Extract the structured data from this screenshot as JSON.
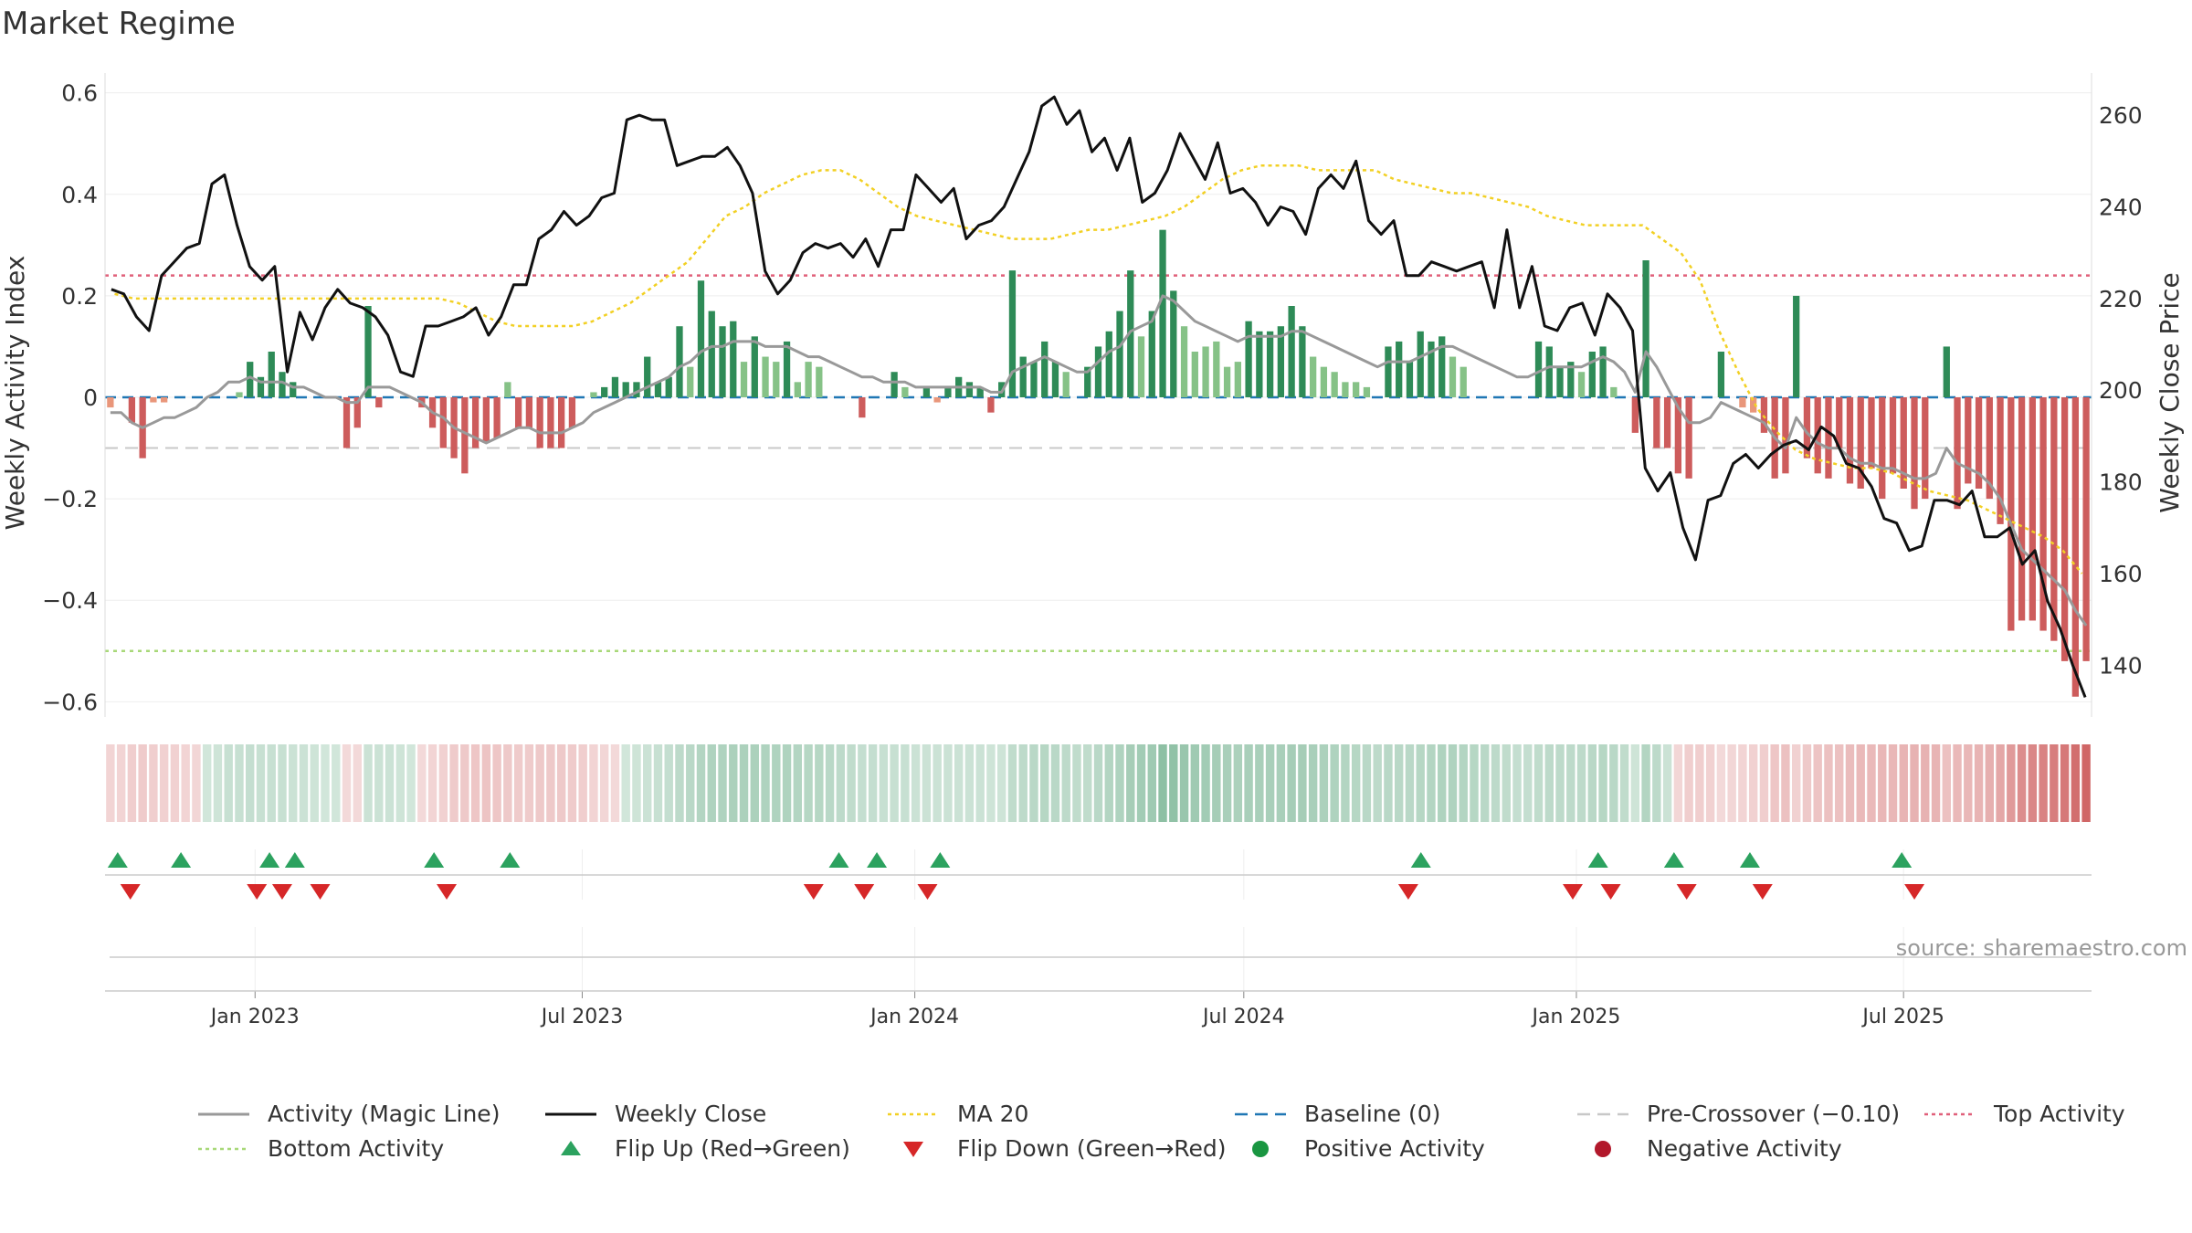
{
  "title": "Market Regime",
  "source": "source: sharemaestro.com",
  "axes": {
    "left_label": "Weekly Activity Index",
    "right_label": "Weekly Close Price",
    "left_ticks": [
      "0.6",
      "0.4",
      "0.2",
      "0",
      "−0.2",
      "−0.4",
      "−0.6"
    ],
    "right_ticks": [
      "260",
      "240",
      "220",
      "200",
      "180",
      "160",
      "140"
    ],
    "x_ticks": [
      "Jan 2023",
      "Jul 2023",
      "Jan 2024",
      "Jul 2024",
      "Jan 2025",
      "Jul 2025"
    ]
  },
  "legend": [
    {
      "label": "Activity (Magic Line)",
      "kind": "line",
      "color": "#999999"
    },
    {
      "label": "Weekly Close",
      "kind": "line",
      "color": "#111111"
    },
    {
      "label": "MA 20",
      "kind": "dotted",
      "color": "#f2d024"
    },
    {
      "label": "Baseline (0)",
      "kind": "dashed",
      "color": "#1f77b4"
    },
    {
      "label": "Pre-Crossover (−0.10)",
      "kind": "dashed",
      "color": "#c8c8c8"
    },
    {
      "label": "Top Activity",
      "kind": "dotted",
      "color": "#e0607a"
    },
    {
      "label": "Bottom Activity",
      "kind": "dotted",
      "color": "#a8d878"
    },
    {
      "label": "Flip Up (Red→Green)",
      "kind": "tri-up",
      "color": "#2ca25f"
    },
    {
      "label": "Flip Down (Green→Red)",
      "kind": "tri-down",
      "color": "#d62728"
    },
    {
      "label": "Positive Activity",
      "kind": "dot",
      "color": "#1a9641"
    },
    {
      "label": "Negative Activity",
      "kind": "dot",
      "color": "#b2182b"
    }
  ],
  "colors": {
    "pos_dark": "#2e8b57",
    "pos_light": "#86c287",
    "neg_dark": "#cd5c5c",
    "neg_light": "#e9967a",
    "close": "#111111",
    "magic": "#999999",
    "ma": "#f2d024",
    "top": "#e0607a",
    "bottom": "#a8d878",
    "pre": "#c8c8c8",
    "baseline": "#1f77b4",
    "flip_up": "#2ca25f",
    "flip_down": "#d62728"
  },
  "chart_data": {
    "type": "bar",
    "x_range": [
      "2022-10-10",
      "2025-10-13"
    ],
    "ylim": [
      -0.63,
      0.63
    ],
    "y2lim": [
      128.7,
      268.2
    ],
    "thresholds": {
      "top": 0.24,
      "bottom": -0.5,
      "pre_crossover": -0.1,
      "baseline": 0
    },
    "series": [
      {
        "name": "Weekly Activity Index (bars)",
        "values": [
          -0.02,
          0.0,
          -0.05,
          -0.12,
          -0.01,
          -0.01,
          0.0,
          0.0,
          0.0,
          0.0,
          0.0,
          0.0,
          0.01,
          0.07,
          0.04,
          0.09,
          0.05,
          0.03,
          0.0,
          0.0,
          0.0,
          0.0,
          -0.1,
          -0.06,
          0.18,
          -0.02,
          0.0,
          0.0,
          0.0,
          -0.02,
          -0.06,
          -0.1,
          -0.12,
          -0.15,
          -0.1,
          -0.09,
          -0.08,
          0.03,
          -0.06,
          -0.06,
          -0.1,
          -0.1,
          -0.1,
          -0.06,
          0.0,
          0.01,
          0.02,
          0.04,
          0.03,
          0.03,
          0.08,
          0.03,
          0.04,
          0.14,
          0.06,
          0.23,
          0.17,
          0.14,
          0.15,
          0.07,
          0.12,
          0.08,
          0.07,
          0.11,
          0.03,
          0.07,
          0.06,
          0.0,
          0.0,
          0.0,
          -0.04,
          0.0,
          0.0,
          0.05,
          0.02,
          0.0,
          0.02,
          -0.01,
          0.02,
          0.04,
          0.03,
          0.02,
          -0.03,
          0.03,
          0.25,
          0.08,
          0.07,
          0.11,
          0.07,
          0.05,
          0.0,
          0.06,
          0.1,
          0.13,
          0.17,
          0.25,
          0.12,
          0.17,
          0.33,
          0.21,
          0.14,
          0.09,
          0.1,
          0.11,
          0.06,
          0.07,
          0.15,
          0.13,
          0.13,
          0.14,
          0.18,
          0.14,
          0.08,
          0.06,
          0.05,
          0.03,
          0.03,
          0.02,
          0.0,
          0.1,
          0.11,
          0.07,
          0.13,
          0.11,
          0.12,
          0.08,
          0.06,
          0.0,
          0.0,
          0.0,
          0.0,
          0.0,
          0.0,
          0.11,
          0.1,
          0.06,
          0.07,
          0.05,
          0.09,
          0.1,
          0.02,
          0.0,
          -0.07,
          0.27,
          -0.1,
          -0.1,
          -0.15,
          -0.16,
          0.0,
          0.0,
          0.09,
          0.0,
          -0.02,
          -0.03,
          -0.07,
          -0.16,
          -0.15,
          0.2,
          -0.12,
          -0.15,
          -0.16,
          -0.1,
          -0.17,
          -0.18,
          -0.14,
          -0.2,
          -0.15,
          -0.18,
          -0.22,
          -0.2,
          0.0,
          0.1,
          -0.22,
          -0.17,
          -0.18,
          -0.2,
          -0.25,
          -0.46,
          -0.44,
          -0.44,
          -0.46,
          -0.48,
          -0.52,
          -0.59,
          -0.52
        ]
      },
      {
        "name": "Activity (Magic Line)",
        "values": [
          -0.03,
          -0.03,
          -0.05,
          -0.06,
          -0.05,
          -0.04,
          -0.04,
          -0.03,
          -0.02,
          0.0,
          0.01,
          0.03,
          0.03,
          0.04,
          0.03,
          0.03,
          0.03,
          0.02,
          0.02,
          0.01,
          0.0,
          0.0,
          -0.01,
          -0.01,
          0.02,
          0.02,
          0.02,
          0.01,
          0.0,
          -0.01,
          -0.03,
          -0.04,
          -0.06,
          -0.07,
          -0.08,
          -0.09,
          -0.08,
          -0.07,
          -0.06,
          -0.06,
          -0.07,
          -0.07,
          -0.07,
          -0.06,
          -0.05,
          -0.03,
          -0.02,
          -0.01,
          0.0,
          0.01,
          0.02,
          0.03,
          0.04,
          0.06,
          0.07,
          0.09,
          0.1,
          0.1,
          0.11,
          0.11,
          0.11,
          0.1,
          0.1,
          0.1,
          0.09,
          0.08,
          0.08,
          0.07,
          0.06,
          0.05,
          0.04,
          0.04,
          0.03,
          0.03,
          0.03,
          0.02,
          0.02,
          0.02,
          0.02,
          0.02,
          0.02,
          0.02,
          0.01,
          0.01,
          0.05,
          0.06,
          0.07,
          0.08,
          0.07,
          0.06,
          0.05,
          0.05,
          0.07,
          0.09,
          0.1,
          0.13,
          0.14,
          0.15,
          0.2,
          0.19,
          0.17,
          0.15,
          0.14,
          0.13,
          0.12,
          0.11,
          0.12,
          0.12,
          0.12,
          0.12,
          0.13,
          0.13,
          0.12,
          0.11,
          0.1,
          0.09,
          0.08,
          0.07,
          0.06,
          0.07,
          0.07,
          0.07,
          0.08,
          0.09,
          0.1,
          0.1,
          0.09,
          0.08,
          0.07,
          0.06,
          0.05,
          0.04,
          0.04,
          0.05,
          0.06,
          0.06,
          0.06,
          0.06,
          0.07,
          0.08,
          0.07,
          0.05,
          0.01,
          0.09,
          0.06,
          0.02,
          -0.02,
          -0.05,
          -0.05,
          -0.04,
          -0.01,
          -0.02,
          -0.03,
          -0.04,
          -0.05,
          -0.08,
          -0.1,
          -0.04,
          -0.07,
          -0.09,
          -0.1,
          -0.1,
          -0.12,
          -0.13,
          -0.13,
          -0.14,
          -0.14,
          -0.15,
          -0.16,
          -0.16,
          -0.15,
          -0.1,
          -0.13,
          -0.14,
          -0.15,
          -0.17,
          -0.2,
          -0.25,
          -0.3,
          -0.32,
          -0.34,
          -0.36,
          -0.38,
          -0.42,
          -0.45
        ]
      },
      {
        "name": "Weekly Close",
        "values": [
          222,
          221,
          216,
          213,
          225,
          228,
          231,
          232,
          245,
          247,
          236,
          227,
          224,
          227,
          204,
          217,
          211,
          218,
          222,
          219,
          218,
          216,
          212,
          204,
          203,
          214,
          214,
          215,
          216,
          218,
          212,
          216,
          223,
          223,
          233,
          235,
          239,
          236,
          238,
          242,
          243,
          259,
          260,
          259,
          259,
          249,
          250,
          251,
          251,
          253,
          249,
          243,
          226,
          221,
          224,
          230,
          232,
          231,
          232,
          229,
          233,
          227,
          235,
          235,
          247,
          244,
          241,
          244,
          233,
          236,
          237,
          240,
          246,
          252,
          262,
          264,
          258,
          261,
          252,
          255,
          248,
          255,
          241,
          243,
          248,
          256,
          251,
          246,
          254,
          243,
          244,
          241,
          236,
          240,
          239,
          234,
          244,
          247,
          244,
          250,
          237,
          234,
          237,
          225,
          225,
          228,
          227,
          226,
          227,
          228,
          218,
          235,
          218,
          227,
          214,
          213,
          218,
          219,
          212,
          221,
          218,
          213,
          183,
          178,
          182,
          170,
          163,
          176,
          177,
          184,
          186,
          183,
          186,
          188,
          189,
          187,
          192,
          190,
          184,
          183,
          179,
          172,
          171,
          165,
          166,
          176,
          176,
          175,
          178,
          168,
          168,
          170,
          162,
          165,
          154,
          148,
          140,
          133
        ]
      },
      {
        "name": "MA 20",
        "values": [
          221,
          220,
          220,
          220,
          220,
          220,
          220,
          220,
          220,
          220,
          220,
          220,
          220,
          220,
          220,
          220,
          220,
          220,
          219,
          217,
          215,
          214,
          214,
          214,
          214,
          215,
          217,
          219,
          222,
          225,
          228,
          233,
          238,
          240,
          243,
          245,
          247,
          248,
          248,
          246,
          243,
          240,
          238,
          237,
          236,
          235,
          234,
          233,
          233,
          233,
          234,
          235,
          235,
          236,
          237,
          238,
          240,
          243,
          246,
          248,
          249,
          249,
          249,
          248,
          248,
          248,
          248,
          246,
          245,
          244,
          243,
          243,
          242,
          241,
          240,
          238,
          237,
          236,
          236,
          236,
          236,
          233,
          230,
          224,
          213,
          204,
          196,
          191,
          187,
          185,
          184,
          183,
          183,
          182,
          180,
          178,
          177,
          176,
          174,
          172,
          170,
          168,
          165,
          160
        ]
      }
    ],
    "flip_up_dates": [
      "2022-10-17",
      "2022-11-21",
      "2023-01-09",
      "2023-01-23",
      "2023-04-10",
      "2023-05-22",
      "2023-11-20",
      "2023-12-11",
      "2024-01-15",
      "2024-10-07",
      "2025-01-13",
      "2025-02-24",
      "2025-04-07",
      "2025-06-30"
    ],
    "flip_down_dates": [
      "2022-10-24",
      "2023-01-02",
      "2023-01-16",
      "2023-02-06",
      "2023-04-17",
      "2023-11-06",
      "2023-12-04",
      "2024-01-08",
      "2024-09-30",
      "2024-12-30",
      "2025-01-20",
      "2025-03-03",
      "2025-04-14",
      "2025-07-07"
    ]
  }
}
